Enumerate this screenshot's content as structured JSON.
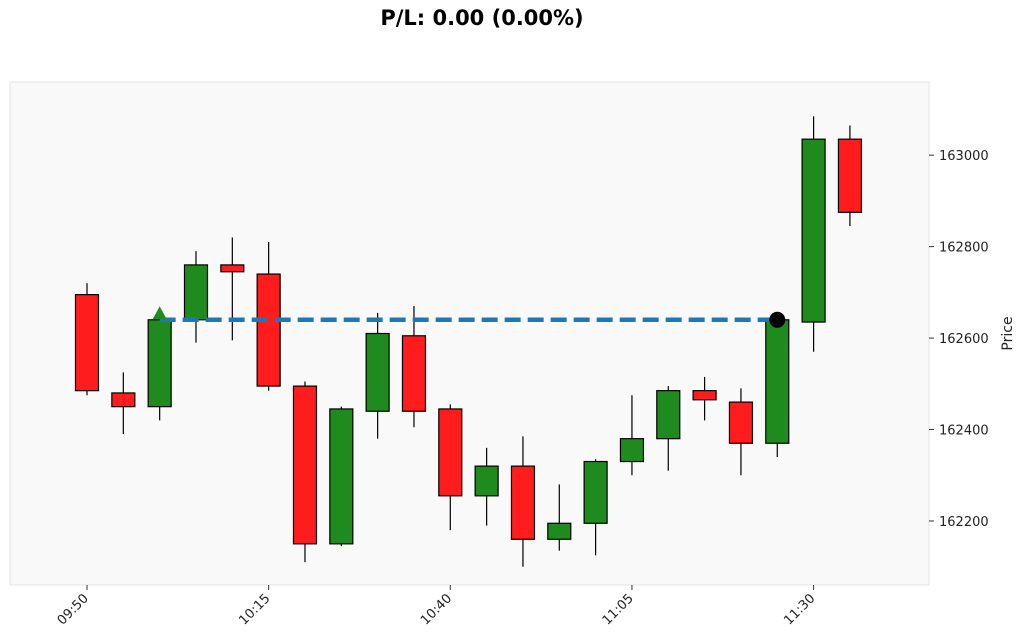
{
  "chart_data": {
    "type": "candlestick",
    "title": "P/L: 0.00 (0.00%)",
    "ylabel": "Price",
    "xlabel": "",
    "ylim": [
      162060,
      163160
    ],
    "grid": false,
    "y_ticks": [
      162200,
      162400,
      162600,
      162800,
      163000
    ],
    "x_tick_labels": [
      "09:50",
      "10:15",
      "10:40",
      "11:05",
      "11:30"
    ],
    "x_tick_times": [
      "09:50",
      "10:15",
      "10:40",
      "11:05",
      "11:30"
    ],
    "interval_minutes": 5,
    "colors": {
      "up": "#1f8b1f",
      "down": "#ff1c1c",
      "entry_line": "#1f77b4",
      "background": "#f9f9f9"
    },
    "candles": [
      {
        "time": "09:50",
        "open": 162695,
        "high": 162720,
        "low": 162475,
        "close": 162485
      },
      {
        "time": "09:55",
        "open": 162480,
        "high": 162525,
        "low": 162390,
        "close": 162450
      },
      {
        "time": "10:00",
        "open": 162450,
        "high": 162650,
        "low": 162420,
        "close": 162640
      },
      {
        "time": "10:05",
        "open": 162640,
        "high": 162790,
        "low": 162590,
        "close": 162760
      },
      {
        "time": "10:10",
        "open": 162760,
        "high": 162820,
        "low": 162595,
        "close": 162745
      },
      {
        "time": "10:15",
        "open": 162740,
        "high": 162810,
        "low": 162485,
        "close": 162495
      },
      {
        "time": "10:20",
        "open": 162495,
        "high": 162505,
        "low": 162110,
        "close": 162150
      },
      {
        "time": "10:25",
        "open": 162150,
        "high": 162450,
        "low": 162145,
        "close": 162445
      },
      {
        "time": "10:30",
        "open": 162440,
        "high": 162655,
        "low": 162380,
        "close": 162610
      },
      {
        "time": "10:35",
        "open": 162605,
        "high": 162670,
        "low": 162405,
        "close": 162440
      },
      {
        "time": "10:40",
        "open": 162445,
        "high": 162455,
        "low": 162180,
        "close": 162255
      },
      {
        "time": "10:45",
        "open": 162255,
        "high": 162360,
        "low": 162190,
        "close": 162320
      },
      {
        "time": "10:50",
        "open": 162320,
        "high": 162385,
        "low": 162100,
        "close": 162160
      },
      {
        "time": "10:55",
        "open": 162160,
        "high": 162280,
        "low": 162135,
        "close": 162195
      },
      {
        "time": "11:00",
        "open": 162195,
        "high": 162335,
        "low": 162125,
        "close": 162330
      },
      {
        "time": "11:05",
        "open": 162330,
        "high": 162475,
        "low": 162300,
        "close": 162380
      },
      {
        "time": "11:10",
        "open": 162380,
        "high": 162495,
        "low": 162310,
        "close": 162485
      },
      {
        "time": "11:15",
        "open": 162485,
        "high": 162515,
        "low": 162420,
        "close": 162465
      },
      {
        "time": "11:20",
        "open": 162460,
        "high": 162490,
        "low": 162300,
        "close": 162370
      },
      {
        "time": "11:25",
        "open": 162370,
        "high": 162640,
        "low": 162340,
        "close": 162640
      },
      {
        "time": "11:30",
        "open": 162635,
        "high": 163085,
        "low": 162570,
        "close": 163035
      },
      {
        "time": "11:35",
        "open": 163035,
        "high": 163065,
        "low": 162845,
        "close": 162875
      }
    ],
    "entry_line": {
      "price": 162640,
      "start": "10:00",
      "end": "11:25",
      "style": "dashed"
    },
    "entry_marker": {
      "time": "10:00",
      "price": 162650,
      "shape": "triangle-up",
      "color": "#1f8b1f"
    },
    "exit_marker": {
      "time": "11:25",
      "price": 162640,
      "shape": "circle",
      "color": "#000000"
    }
  }
}
